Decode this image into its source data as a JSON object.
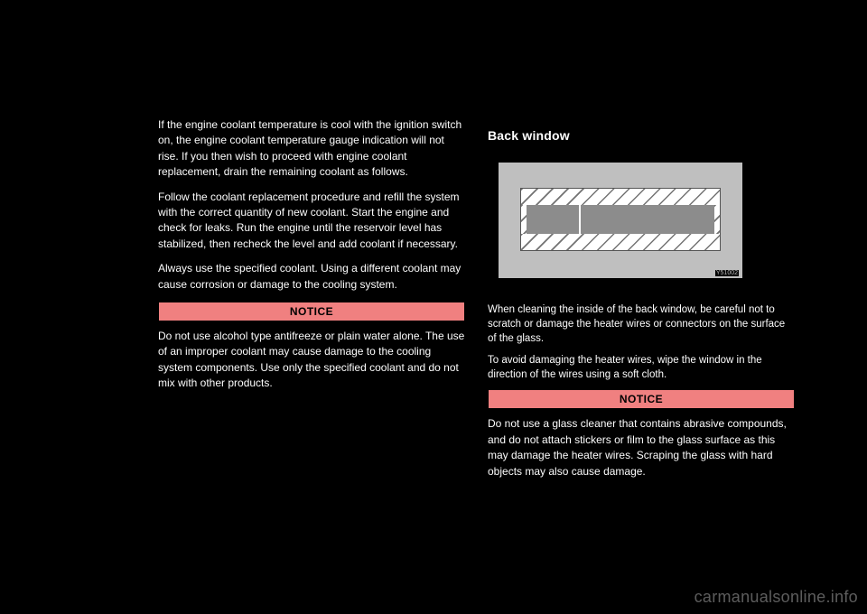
{
  "left": {
    "para1": "If the engine coolant temperature is cool with the ignition switch on, the engine coolant temperature gauge indication will not rise. If you then wish to proceed with engine coolant replacement, drain the remaining coolant as follows.",
    "para2": "Follow the coolant replacement procedure and refill the system with the correct quantity of new coolant. Start the engine and check for leaks. Run the engine until the reservoir level has stabilized, then recheck the level and add coolant if necessary.",
    "para3": "Always use the specified coolant. Using a different coolant may cause corrosion or damage to the cooling system.",
    "notice_label": "NOTICE",
    "notice_body": "Do not use alcohol type antifreeze or plain water alone. The use of an improper coolant may cause damage to the cooling system components. Use only the specified coolant and do not mix with other products."
  },
  "right": {
    "heading": "Back window",
    "figure": {
      "background": "#bfbfbf",
      "panel": "#ffffff",
      "bar": "#8c8c8c",
      "code": "Y51002"
    },
    "para1": "When cleaning the inside of the back window, be careful not to scratch or damage the heater wires or connectors on the surface of the glass.",
    "para2": "To avoid damaging the heater wires, wipe the window in the direction of the wires using a soft cloth.",
    "notice_label": "NOTICE",
    "notice_body": "Do not use a glass cleaner that contains abrasive compounds, and do not attach stickers or film to the glass surface as this may damage the heater wires. Scraping the glass with hard objects may also cause damage."
  },
  "watermark": "carmanualsonline.info"
}
